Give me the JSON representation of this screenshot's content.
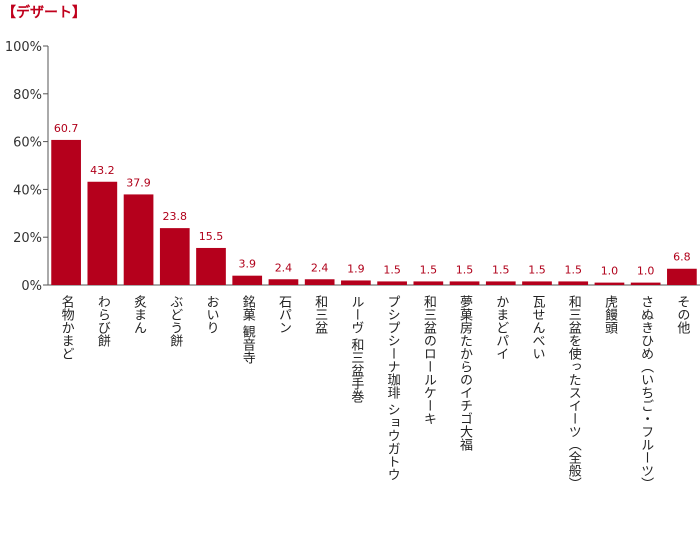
{
  "chart_data": {
    "type": "bar",
    "title": "【デザート】",
    "xlabel": "",
    "ylabel": "",
    "ylim": [
      0,
      100
    ],
    "yticks": [
      "0%",
      "20%",
      "40%",
      "60%",
      "80%",
      "100%"
    ],
    "grid": false,
    "bar_color": "#b5001c",
    "title_color": "#c0001c",
    "categories": [
      "名物かまど",
      "わらび餅",
      "炙まん",
      "ぶどう餅",
      "おいり",
      "銘菓 観音寺",
      "石パン",
      "和三盆",
      "ルーヴ 和三盆手巻",
      "プシプシーナ珈琲 ショウガトウ",
      "和三盆のロールケーキ",
      "夢菓房たからのイチゴ大福",
      "かまどパイ",
      "瓦せんべい",
      "和三盆を使ったスイーツ（全般）",
      "虎饅頭",
      "さぬきひめ（いちご・フルーツ）",
      "その他"
    ],
    "values": [
      60.7,
      43.2,
      37.9,
      23.8,
      15.5,
      3.9,
      2.4,
      2.4,
      1.9,
      1.5,
      1.5,
      1.5,
      1.5,
      1.5,
      1.5,
      1.0,
      1.0,
      6.8
    ],
    "value_labels": [
      "60.7",
      "43.2",
      "37.9",
      "23.8",
      "15.5",
      "3.9",
      "2.4",
      "2.4",
      "1.9",
      "1.5",
      "1.5",
      "1.5",
      "1.5",
      "1.5",
      "1.5",
      "1.0",
      "1.0",
      "6.8"
    ]
  }
}
